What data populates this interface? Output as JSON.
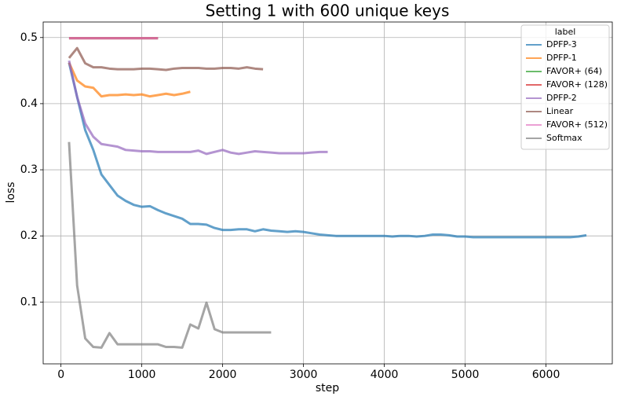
{
  "chart_data": {
    "type": "line",
    "title": "Setting 1 with 600 unique keys",
    "x_label": "step",
    "y_label": "loss",
    "legend_title": "label",
    "legend_position": "upper right",
    "grid": true,
    "xlim": [
      -220,
      6820
    ],
    "xticks": [
      0,
      1000,
      2000,
      3000,
      4000,
      5000,
      6000
    ],
    "ylim": [
      0.0065,
      0.5235
    ],
    "yticks": [
      0.1,
      0.2,
      0.3,
      0.4,
      0.5
    ],
    "series": [
      {
        "name": "DPFP-3",
        "color": "#1f77b4",
        "x": [
          100,
          200,
          300,
          400,
          500,
          600,
          700,
          800,
          900,
          1000,
          1100,
          1200,
          1300,
          1400,
          1500,
          1600,
          1700,
          1800,
          1900,
          2000,
          2100,
          2200,
          2300,
          2400,
          2500,
          2600,
          2700,
          2800,
          2900,
          3000,
          3100,
          3200,
          3300,
          3400,
          3500,
          3600,
          3700,
          3800,
          3900,
          4000,
          4100,
          4200,
          4300,
          4400,
          4500,
          4600,
          4700,
          4800,
          4900,
          5000,
          5100,
          5200,
          5300,
          5400,
          5500,
          5600,
          5700,
          5800,
          5900,
          6000,
          6100,
          6200,
          6300,
          6400,
          6500
        ],
        "values": [
          0.462,
          0.41,
          0.36,
          0.33,
          0.293,
          0.277,
          0.261,
          0.253,
          0.247,
          0.244,
          0.245,
          0.239,
          0.234,
          0.23,
          0.226,
          0.218,
          0.218,
          0.217,
          0.212,
          0.209,
          0.209,
          0.21,
          0.21,
          0.207,
          0.21,
          0.208,
          0.207,
          0.206,
          0.207,
          0.206,
          0.204,
          0.202,
          0.201,
          0.2,
          0.2,
          0.2,
          0.2,
          0.2,
          0.2,
          0.2,
          0.199,
          0.2,
          0.2,
          0.199,
          0.2,
          0.202,
          0.202,
          0.201,
          0.199,
          0.199,
          0.198,
          0.198,
          0.198,
          0.198,
          0.198,
          0.198,
          0.198,
          0.198,
          0.198,
          0.198,
          0.198,
          0.198,
          0.198,
          0.199,
          0.201
        ]
      },
      {
        "name": "DPFP-1",
        "color": "#ff7f0e",
        "x": [
          100,
          200,
          300,
          400,
          500,
          600,
          700,
          800,
          900,
          1000,
          1100,
          1200,
          1300,
          1400,
          1500,
          1600
        ],
        "values": [
          0.462,
          0.435,
          0.426,
          0.424,
          0.411,
          0.413,
          0.413,
          0.414,
          0.413,
          0.414,
          0.411,
          0.413,
          0.415,
          0.413,
          0.415,
          0.418
        ]
      },
      {
        "name": "FAVOR+ (64)",
        "color": "#2ca02c",
        "x": [
          100,
          200,
          300,
          400,
          500,
          600,
          700,
          800,
          900,
          1000,
          1100,
          1200
        ],
        "values": [
          0.499,
          0.499,
          0.499,
          0.499,
          0.499,
          0.499,
          0.499,
          0.499,
          0.499,
          0.499,
          0.499,
          0.499
        ]
      },
      {
        "name": "FAVOR+ (128)",
        "color": "#d62728",
        "x": [
          100,
          200,
          300,
          400,
          500,
          600,
          700,
          800,
          900,
          1000,
          1100,
          1200
        ],
        "values": [
          0.499,
          0.499,
          0.499,
          0.499,
          0.499,
          0.499,
          0.499,
          0.499,
          0.499,
          0.499,
          0.499,
          0.499
        ]
      },
      {
        "name": "DPFP-2",
        "color": "#9467bd",
        "x": [
          100,
          200,
          300,
          400,
          500,
          600,
          700,
          800,
          900,
          1000,
          1100,
          1200,
          1300,
          1400,
          1500,
          1600,
          1700,
          1800,
          1900,
          2000,
          2100,
          2200,
          2300,
          2400,
          2500,
          2600,
          2700,
          2800,
          2900,
          3000,
          3100,
          3200,
          3300
        ],
        "values": [
          0.465,
          0.41,
          0.37,
          0.35,
          0.339,
          0.337,
          0.335,
          0.33,
          0.329,
          0.328,
          0.328,
          0.327,
          0.327,
          0.327,
          0.327,
          0.327,
          0.329,
          0.324,
          0.327,
          0.33,
          0.326,
          0.324,
          0.326,
          0.328,
          0.327,
          0.326,
          0.325,
          0.325,
          0.325,
          0.325,
          0.326,
          0.327,
          0.327
        ]
      },
      {
        "name": "Linear",
        "color": "#8c564b",
        "x": [
          100,
          200,
          300,
          400,
          500,
          600,
          700,
          800,
          900,
          1000,
          1100,
          1200,
          1300,
          1400,
          1500,
          1600,
          1700,
          1800,
          1900,
          2000,
          2100,
          2200,
          2300,
          2400,
          2500
        ],
        "values": [
          0.469,
          0.484,
          0.461,
          0.455,
          0.455,
          0.453,
          0.452,
          0.452,
          0.452,
          0.453,
          0.453,
          0.452,
          0.451,
          0.453,
          0.454,
          0.454,
          0.454,
          0.453,
          0.453,
          0.454,
          0.454,
          0.453,
          0.455,
          0.453,
          0.452
        ]
      },
      {
        "name": "FAVOR+ (512)",
        "color": "#e377c2",
        "x": [
          100,
          200,
          300,
          400,
          500,
          600,
          700,
          800,
          900,
          1000,
          1100,
          1200
        ],
        "values": [
          0.499,
          0.499,
          0.499,
          0.499,
          0.499,
          0.499,
          0.499,
          0.499,
          0.499,
          0.499,
          0.499,
          0.499
        ]
      },
      {
        "name": "Softmax",
        "color": "#7f7f7f",
        "x": [
          100,
          200,
          300,
          400,
          500,
          600,
          700,
          800,
          900,
          1000,
          1100,
          1200,
          1300,
          1400,
          1500,
          1600,
          1700,
          1800,
          1900,
          2000,
          2100,
          2200,
          2300,
          2400,
          2500,
          2600
        ],
        "values": [
          0.342,
          0.125,
          0.045,
          0.032,
          0.031,
          0.053,
          0.036,
          0.036,
          0.036,
          0.036,
          0.036,
          0.036,
          0.032,
          0.032,
          0.031,
          0.066,
          0.06,
          0.099,
          0.059,
          0.054,
          0.054,
          0.054,
          0.054,
          0.054,
          0.054,
          0.054
        ]
      }
    ]
  }
}
